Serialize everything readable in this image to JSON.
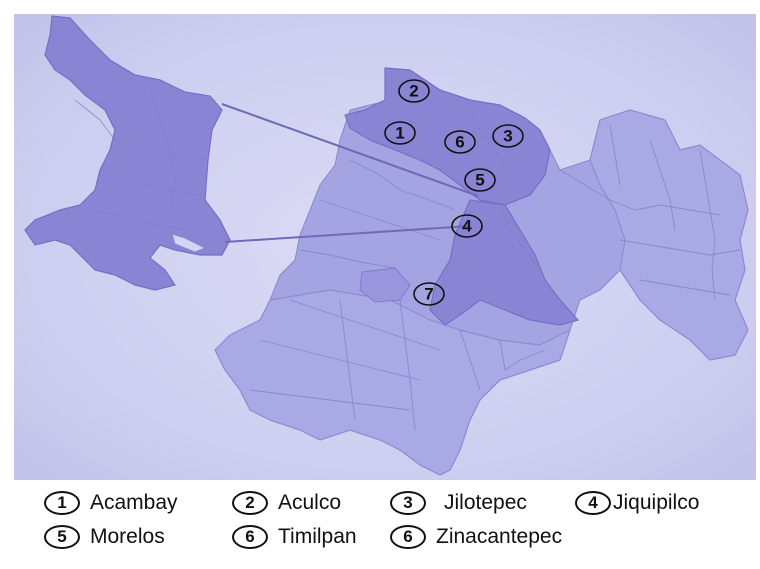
{
  "markers": [
    "1",
    "2",
    "3",
    "4",
    "5",
    "6",
    "7"
  ],
  "legend": [
    {
      "num": "1",
      "name": "Acambay"
    },
    {
      "num": "2",
      "name": "Aculco"
    },
    {
      "num": "3",
      "name": "Jilotepec"
    },
    {
      "num": "4",
      "name": "Jiquipilco"
    },
    {
      "num": "5",
      "name": "Morelos"
    },
    {
      "num": "6",
      "name": "Timilpan"
    },
    {
      "num": "6",
      "name": "Zinacantepec"
    }
  ],
  "colors": {
    "background": "#cdcdf0",
    "region_light": "#a9a9e6",
    "region_highlight": "#8a84d4",
    "text": "#111111"
  }
}
